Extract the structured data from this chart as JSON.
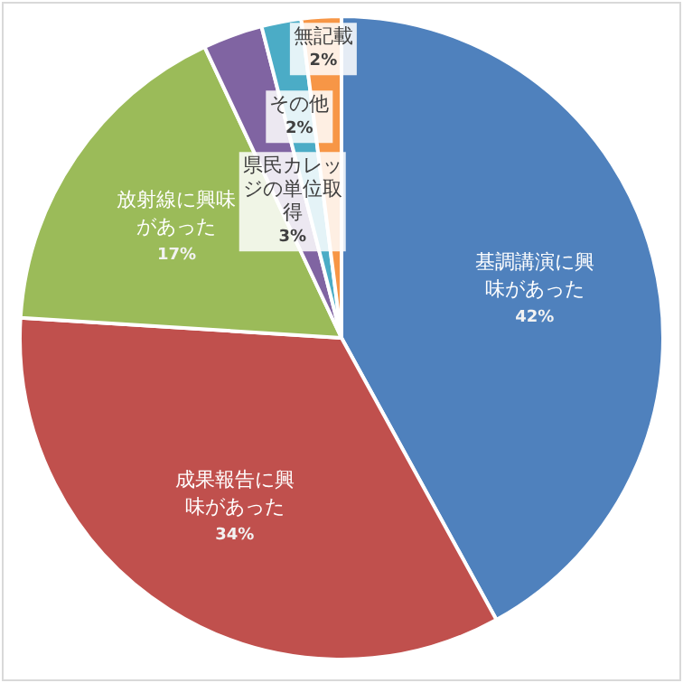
{
  "chart_data": {
    "type": "pie",
    "categories": [
      "基調講演に興味があった",
      "成果報告に興味があった",
      "放射線に興味があった",
      "県民カレッジの単位取得",
      "その他",
      "無記載"
    ],
    "values": [
      42,
      34,
      17,
      3,
      2,
      2
    ],
    "colors": [
      "#4f81bd",
      "#c0504d",
      "#9bbb59",
      "#8064a2",
      "#4bacc6",
      "#f79646"
    ],
    "value_labels": [
      "42%",
      "34%",
      "17%",
      "3%",
      "2%",
      "2%"
    ],
    "legend": false
  }
}
